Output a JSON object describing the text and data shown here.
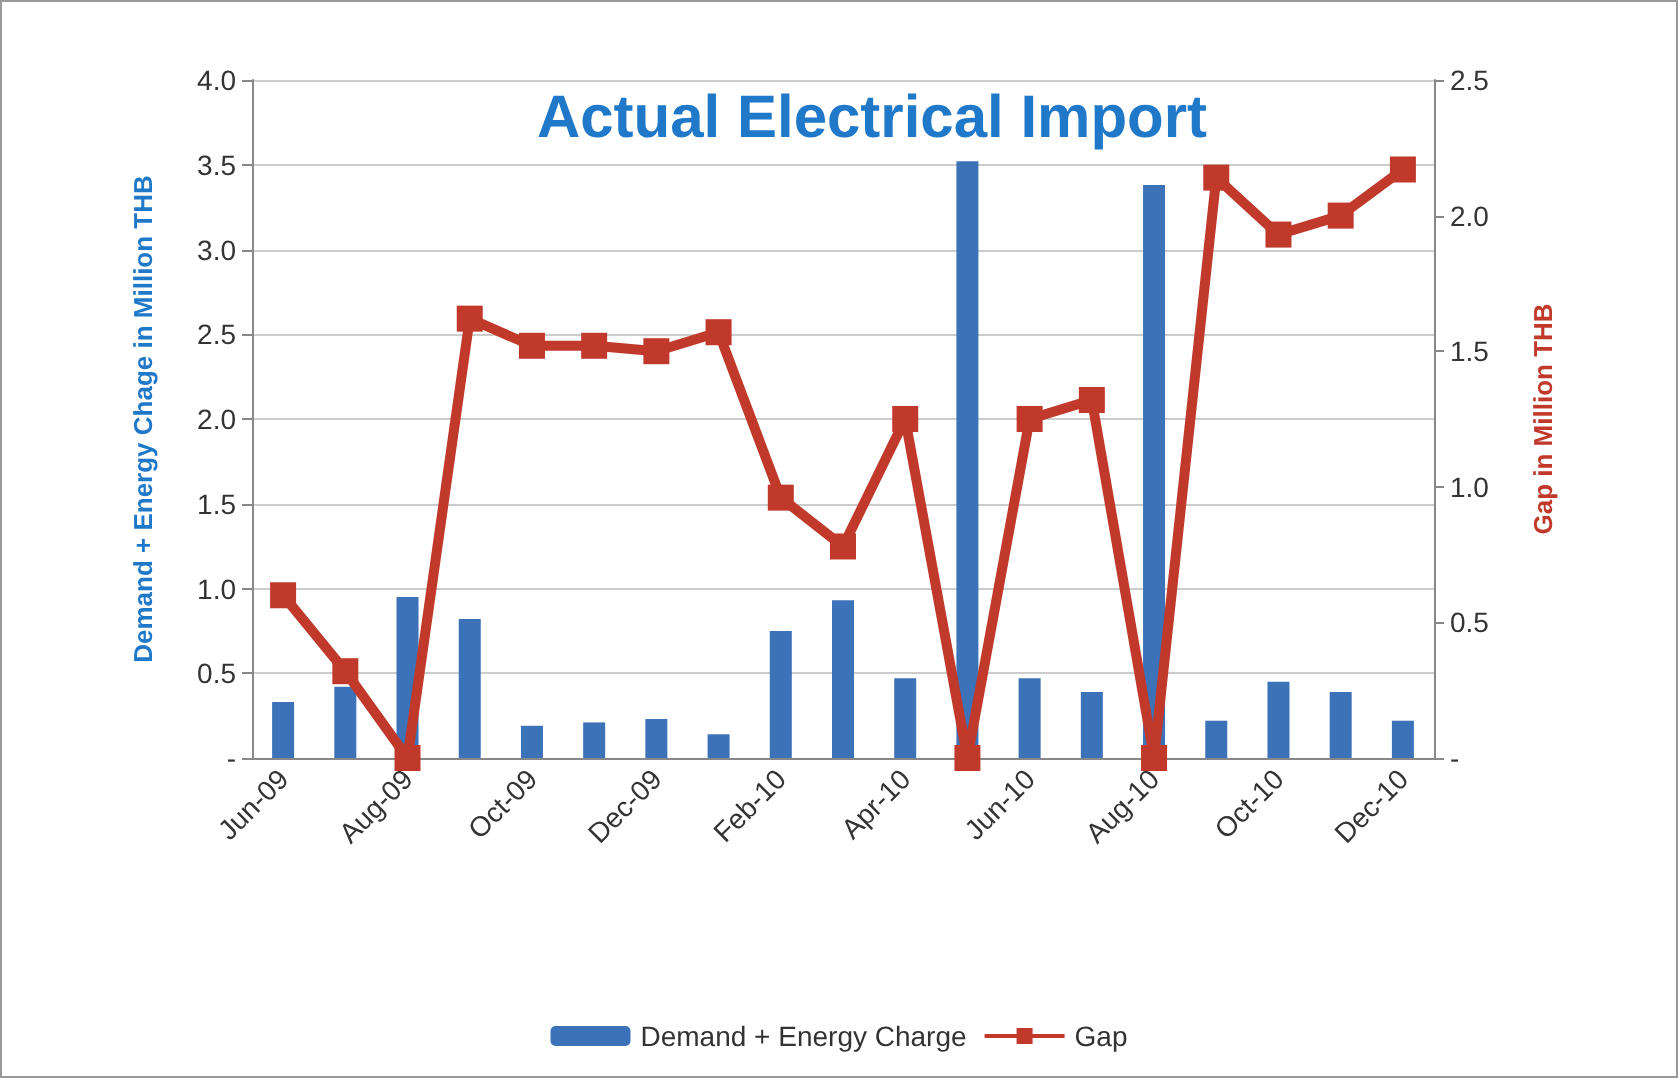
{
  "chart_data": {
    "type": "bar",
    "title": "Actual Electrical Import",
    "ylabel": "Demand + Energy Chage in Million THB",
    "y2label": "Gap in Million THB",
    "categories": [
      "Jun-09",
      null,
      "Aug-09",
      null,
      "Oct-09",
      null,
      "Dec-09",
      null,
      "Feb-10",
      null,
      "Apr-10",
      null,
      "Jun-10",
      null,
      "Aug-10",
      null,
      "Oct-10",
      null,
      "Dec-10"
    ],
    "series": [
      {
        "name": "Demand + Energy Charge",
        "color": "#3c72b8",
        "values": [
          0.33,
          0.42,
          0.95,
          0.82,
          0.19,
          0.21,
          0.23,
          0.14,
          0.75,
          0.93,
          0.47,
          3.52,
          0.47,
          0.39,
          3.38,
          0.22,
          0.45,
          0.39,
          0.22
        ]
      },
      {
        "name": "Gap",
        "type": "line",
        "axis": "y2",
        "color": "#c0392b",
        "marker": "square",
        "values": [
          0.6,
          0.32,
          0,
          1.62,
          1.52,
          1.52,
          1.5,
          1.57,
          0.96,
          0.78,
          1.25,
          0,
          1.25,
          1.32,
          0,
          2.14,
          1.93,
          2.0,
          2.17
        ]
      }
    ],
    "ylim": [
      0,
      4
    ],
    "yticks": [
      {
        "value": 0,
        "label": "-"
      },
      {
        "value": 0.5,
        "label": "0.5"
      },
      {
        "value": 1,
        "label": "1.0"
      },
      {
        "value": 1.5,
        "label": "1.5"
      },
      {
        "value": 2,
        "label": "2.0"
      },
      {
        "value": 2.5,
        "label": "2.5"
      },
      {
        "value": 3,
        "label": "3.0"
      },
      {
        "value": 3.5,
        "label": "3.5"
      },
      {
        "value": 4,
        "label": "4.0"
      }
    ],
    "y2lim": [
      0,
      2.5
    ],
    "y2ticks": [
      {
        "value": 0,
        "label": "-"
      },
      {
        "value": 0.5,
        "label": "0.5"
      },
      {
        "value": 1,
        "label": "1.0"
      },
      {
        "value": 1.5,
        "label": "1.5"
      },
      {
        "value": 2,
        "label": "2.0"
      },
      {
        "value": 2.5,
        "label": "2.5"
      }
    ],
    "grid": "y",
    "legend": "bottom"
  }
}
